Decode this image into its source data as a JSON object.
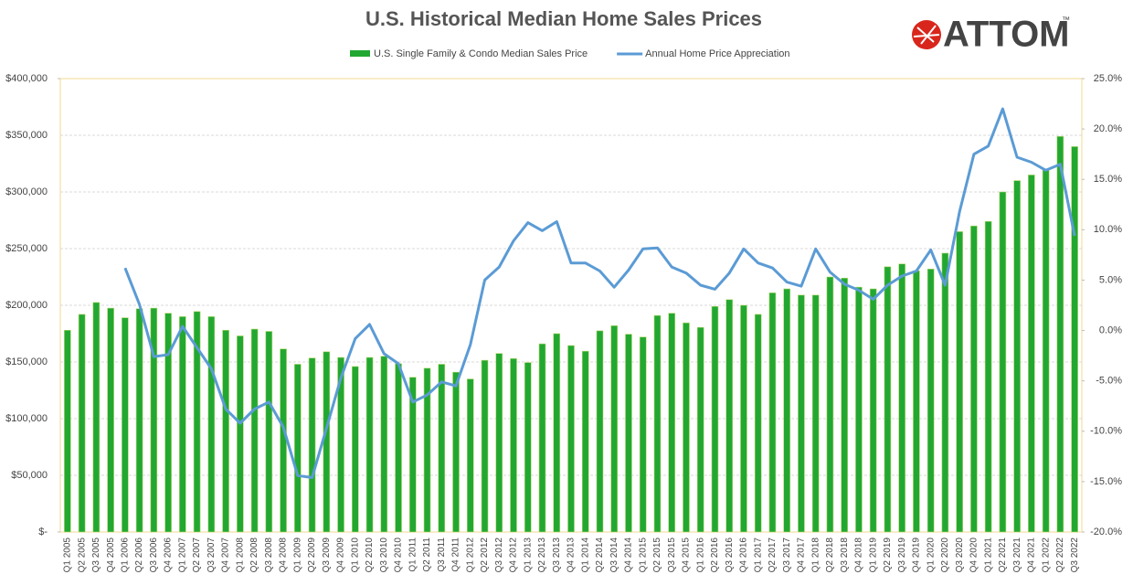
{
  "chart_data": {
    "type": "bar",
    "title": "U.S. Historical Median Home Sales Prices",
    "logo": "ATTOM",
    "logo_mark": "™",
    "categories": [
      "Q1 2005",
      "Q2 2005",
      "Q3 2005",
      "Q4 2005",
      "Q1 2006",
      "Q2 2006",
      "Q3 2006",
      "Q4 2006",
      "Q1 2007",
      "Q2 2007",
      "Q3 2007",
      "Q4 2007",
      "Q1 2008",
      "Q2 2008",
      "Q3 2008",
      "Q4 2008",
      "Q1 2009",
      "Q2 2009",
      "Q3 2009",
      "Q4 2009",
      "Q1 2010",
      "Q2 2010",
      "Q3 2010",
      "Q4 2010",
      "Q1 2011",
      "Q2 2011",
      "Q3 2011",
      "Q4 2011",
      "Q1 2012",
      "Q2 2012",
      "Q3 2012",
      "Q4 2012",
      "Q1 2013",
      "Q2 2013",
      "Q3 2013",
      "Q4 2013",
      "Q1 2014",
      "Q2 2014",
      "Q3 2014",
      "Q4 2014",
      "Q1 2015",
      "Q2 2015",
      "Q3 2015",
      "Q4 2015",
      "Q1 2016",
      "Q2 2016",
      "Q3 2016",
      "Q4 2016",
      "Q1 2017",
      "Q2 2017",
      "Q3 2017",
      "Q4 2017",
      "Q1 2018",
      "Q2 2018",
      "Q3 2018",
      "Q4 2018",
      "Q1 2019",
      "Q2 2019",
      "Q3 2019",
      "Q4 2019",
      "Q1 2020",
      "Q2 2020",
      "Q3 2020",
      "Q4 2020",
      "Q1 2021",
      "Q2 2021",
      "Q3 2021",
      "Q4 2021",
      "Q1 2022",
      "Q2 2022",
      "Q3 2022"
    ],
    "series": [
      {
        "name": "U.S. Single Family & Condo Median Sales Price",
        "type": "bar",
        "color": "#22a832",
        "values": [
          178000,
          192000,
          202500,
          197500,
          189000,
          197000,
          197500,
          193000,
          190000,
          194500,
          190000,
          178000,
          173000,
          179000,
          177000,
          161500,
          148000,
          153500,
          159000,
          154000,
          146000,
          154000,
          155000,
          148500,
          136500,
          144500,
          148000,
          141000,
          135000,
          151500,
          157500,
          153000,
          149500,
          166000,
          175000,
          164500,
          159500,
          177500,
          182000,
          174500,
          172000,
          191000,
          193000,
          184500,
          180500,
          199000,
          205000,
          200000,
          192000,
          211000,
          214500,
          209000,
          209000,
          225000,
          224000,
          216000,
          214500,
          234000,
          236500,
          230500,
          232000,
          246000,
          265000,
          270000,
          274000,
          300000,
          310000,
          315000,
          320000,
          349000,
          340000
        ]
      },
      {
        "name": "Annual Home Price Appreciation",
        "type": "line",
        "axis": "y2",
        "color": "#5b9bd5",
        "values": [
          null,
          null,
          null,
          null,
          6.2,
          2.6,
          -2.6,
          -2.4,
          0.4,
          -1.7,
          -3.8,
          -7.8,
          -9.2,
          -7.8,
          -7.1,
          -9.6,
          -14.4,
          -14.6,
          -9.7,
          -4.7,
          -0.8,
          0.6,
          -2.3,
          -3.3,
          -7.1,
          -6.4,
          -5.1,
          -5.5,
          -1.4,
          5.0,
          6.3,
          8.9,
          10.7,
          9.9,
          10.8,
          6.7,
          6.7,
          5.9,
          4.3,
          6.0,
          8.1,
          8.2,
          6.3,
          5.7,
          4.5,
          4.1,
          5.7,
          8.1,
          6.7,
          6.2,
          4.8,
          4.4,
          8.1,
          5.8,
          4.6,
          4.0,
          3.1,
          4.5,
          5.4,
          5.9,
          8.0,
          4.5,
          11.8,
          17.5,
          18.3,
          22.0,
          17.2,
          16.7,
          15.9,
          16.5,
          9.4
        ]
      }
    ],
    "ylim": [
      0,
      400000
    ],
    "yticks": [
      {
        "value": 0,
        "label": "$-"
      },
      {
        "value": 50000,
        "label": "$50,000"
      },
      {
        "value": 100000,
        "label": "$100,000"
      },
      {
        "value": 150000,
        "label": "$150,000"
      },
      {
        "value": 200000,
        "label": "$200,000"
      },
      {
        "value": 250000,
        "label": "$250,000"
      },
      {
        "value": 300000,
        "label": "$300,000"
      },
      {
        "value": 350000,
        "label": "$350,000"
      },
      {
        "value": 400000,
        "label": "$400,000"
      }
    ],
    "y2lim": [
      -20,
      25
    ],
    "y2ticks": [
      {
        "value": -20,
        "label": "-20.0%"
      },
      {
        "value": -15,
        "label": "-15.0%"
      },
      {
        "value": -10,
        "label": "-10.0%"
      },
      {
        "value": -5,
        "label": "-5.0%"
      },
      {
        "value": 0,
        "label": "0.0%"
      },
      {
        "value": 5,
        "label": "5.0%"
      },
      {
        "value": 10,
        "label": "10.0%"
      },
      {
        "value": 15,
        "label": "15.0%"
      },
      {
        "value": 20,
        "label": "20.0%"
      },
      {
        "value": 25,
        "label": "25.0%"
      }
    ],
    "grid": true,
    "legend": "top"
  }
}
